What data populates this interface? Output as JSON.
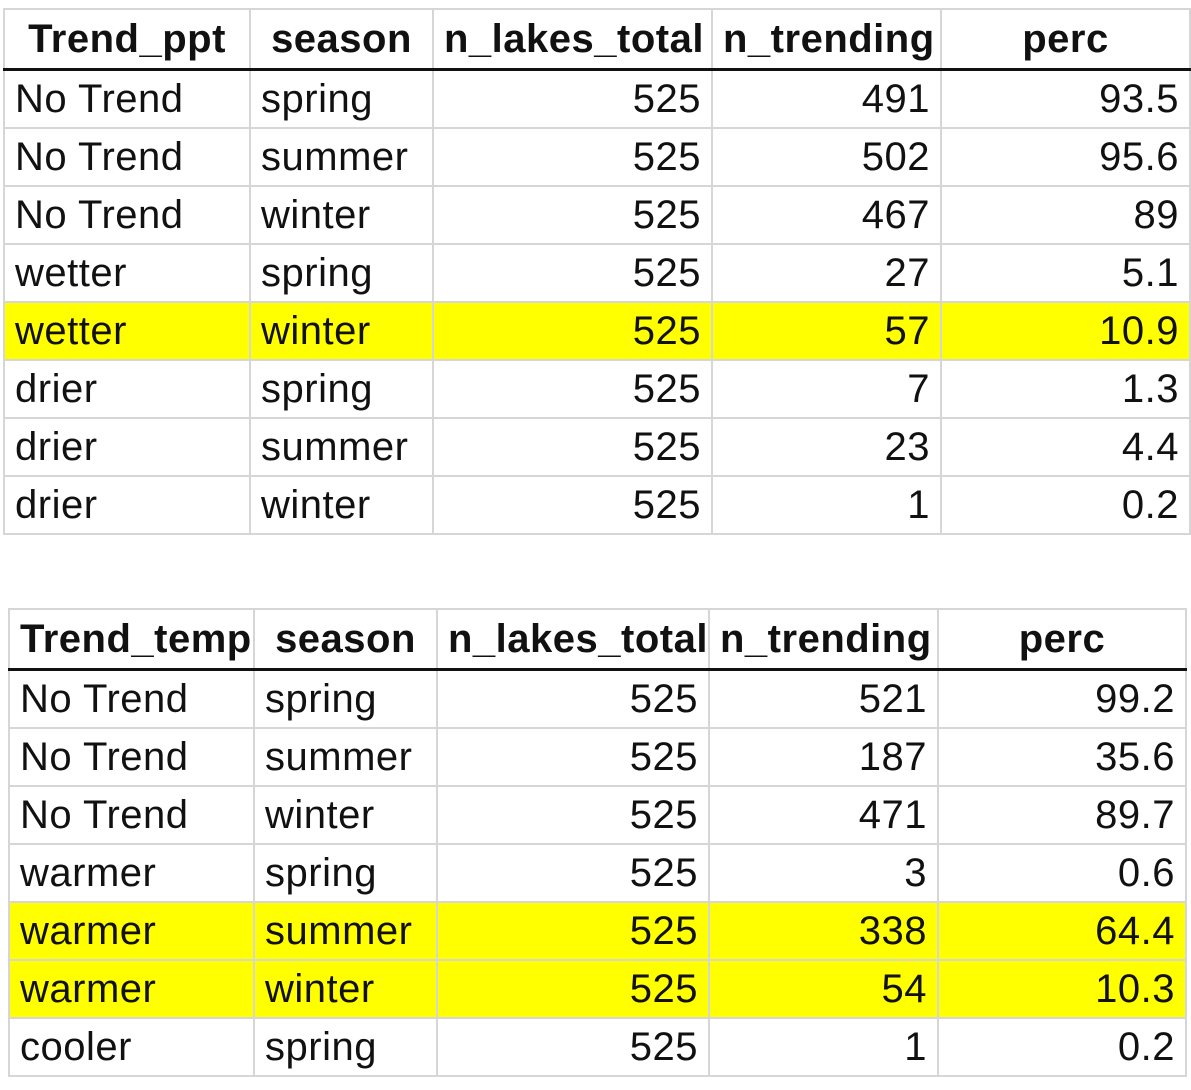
{
  "tables": [
    {
      "headers": [
        "Trend_ppt",
        "season",
        "n_lakes_total",
        "n_trending",
        "perc"
      ],
      "highlight_color": "#ffff00",
      "rows": [
        {
          "trend": "No Trend",
          "season": "spring",
          "n_lakes_total": "525",
          "n_trending": "491",
          "perc": "93.5",
          "highlight": false
        },
        {
          "trend": "No Trend",
          "season": "summer",
          "n_lakes_total": "525",
          "n_trending": "502",
          "perc": "95.6",
          "highlight": false
        },
        {
          "trend": "No Trend",
          "season": "winter",
          "n_lakes_total": "525",
          "n_trending": "467",
          "perc": "89",
          "highlight": false
        },
        {
          "trend": "wetter",
          "season": "spring",
          "n_lakes_total": "525",
          "n_trending": "27",
          "perc": "5.1",
          "highlight": false
        },
        {
          "trend": "wetter",
          "season": "winter",
          "n_lakes_total": "525",
          "n_trending": "57",
          "perc": "10.9",
          "highlight": true
        },
        {
          "trend": "drier",
          "season": "spring",
          "n_lakes_total": "525",
          "n_trending": "7",
          "perc": "1.3",
          "highlight": false
        },
        {
          "trend": "drier",
          "season": "summer",
          "n_lakes_total": "525",
          "n_trending": "23",
          "perc": "4.4",
          "highlight": false
        },
        {
          "trend": "drier",
          "season": "winter",
          "n_lakes_total": "525",
          "n_trending": "1",
          "perc": "0.2",
          "highlight": false
        }
      ]
    },
    {
      "headers": [
        "Trend_temp",
        "season",
        "n_lakes_total",
        "n_trending",
        "perc"
      ],
      "highlight_color": "#ffff00",
      "rows": [
        {
          "trend": "No Trend",
          "season": "spring",
          "n_lakes_total": "525",
          "n_trending": "521",
          "perc": "99.2",
          "highlight": false
        },
        {
          "trend": "No Trend",
          "season": "summer",
          "n_lakes_total": "525",
          "n_trending": "187",
          "perc": "35.6",
          "highlight": false
        },
        {
          "trend": "No Trend",
          "season": "winter",
          "n_lakes_total": "525",
          "n_trending": "471",
          "perc": "89.7",
          "highlight": false
        },
        {
          "trend": "warmer",
          "season": "spring",
          "n_lakes_total": "525",
          "n_trending": "3",
          "perc": "0.6",
          "highlight": false
        },
        {
          "trend": "warmer",
          "season": "summer",
          "n_lakes_total": "525",
          "n_trending": "338",
          "perc": "64.4",
          "highlight": true
        },
        {
          "trend": "warmer",
          "season": "winter",
          "n_lakes_total": "525",
          "n_trending": "54",
          "perc": "10.3",
          "highlight": true
        },
        {
          "trend": "cooler",
          "season": "spring",
          "n_lakes_total": "525",
          "n_trending": "1",
          "perc": "0.2",
          "highlight": false
        }
      ]
    }
  ]
}
